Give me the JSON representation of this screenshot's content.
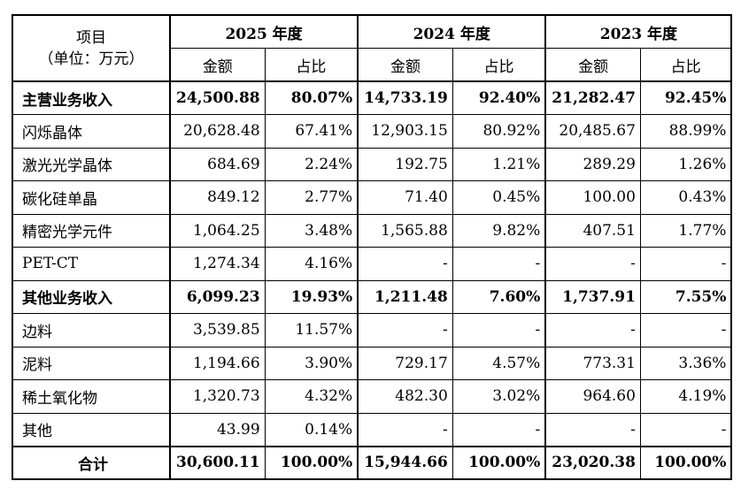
{
  "header": {
    "item_line1": "项目",
    "item_line2": "（单位：万元）",
    "years": [
      "2025 年度",
      "2024 年度",
      "2023 年度"
    ],
    "amount_label": "金额",
    "ratio_label": "占比"
  },
  "rows": [
    {
      "label": "主营业务收入",
      "bold": true,
      "values": [
        "24,500.88",
        "80.07%",
        "14,733.19",
        "92.40%",
        "21,282.47",
        "92.45%"
      ]
    },
    {
      "label": "闪烁晶体",
      "bold": false,
      "values": [
        "20,628.48",
        "67.41%",
        "12,903.15",
        "80.92%",
        "20,485.67",
        "88.99%"
      ]
    },
    {
      "label": "激光光学晶体",
      "bold": false,
      "values": [
        "684.69",
        "2.24%",
        "192.75",
        "1.21%",
        "289.29",
        "1.26%"
      ]
    },
    {
      "label": "碳化硅单晶",
      "bold": false,
      "values": [
        "849.12",
        "2.77%",
        "71.40",
        "0.45%",
        "100.00",
        "0.43%"
      ]
    },
    {
      "label": "精密光学元件",
      "bold": false,
      "values": [
        "1,064.25",
        "3.48%",
        "1,565.88",
        "9.82%",
        "407.51",
        "1.77%"
      ]
    },
    {
      "label": "PET-CT",
      "bold": false,
      "values": [
        "1,274.34",
        "4.16%",
        "-",
        "-",
        "-",
        "-"
      ]
    },
    {
      "label": "其他业务收入",
      "bold": true,
      "values": [
        "6,099.23",
        "19.93%",
        "1,211.48",
        "7.60%",
        "1,737.91",
        "7.55%"
      ]
    },
    {
      "label": "边料",
      "bold": false,
      "values": [
        "3,539.85",
        "11.57%",
        "-",
        "-",
        "-",
        "-"
      ]
    },
    {
      "label": "泥料",
      "bold": false,
      "values": [
        "1,194.66",
        "3.90%",
        "729.17",
        "4.57%",
        "773.31",
        "3.36%"
      ]
    },
    {
      "label": "稀土氧化物",
      "bold": false,
      "values": [
        "1,320.73",
        "4.32%",
        "482.30",
        "3.02%",
        "964.60",
        "4.19%"
      ]
    },
    {
      "label": "其他",
      "bold": false,
      "values": [
        "43.99",
        "0.14%",
        "-",
        "-",
        "-",
        "-"
      ]
    },
    {
      "label": "合计",
      "bold": true,
      "total": true,
      "values": [
        "30,600.11",
        "100.00%",
        "15,944.66",
        "100.00%",
        "23,020.38",
        "100.00%"
      ]
    }
  ]
}
